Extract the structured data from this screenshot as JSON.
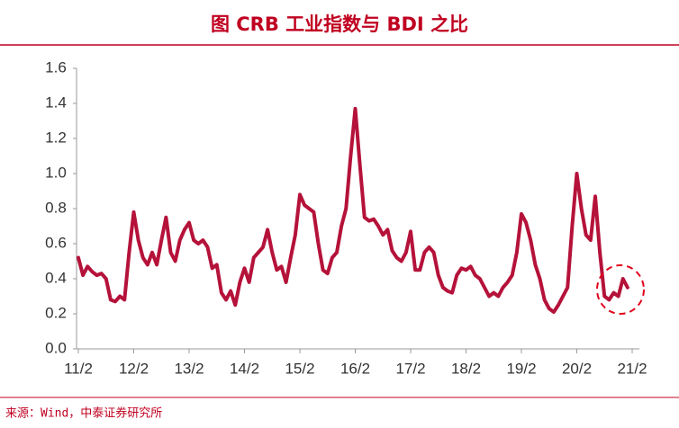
{
  "chart_data": {
    "type": "line",
    "title": "图  CRB 工业指数与 BDI 之比",
    "source": "来源：Wind，中泰证券研究所",
    "color": "#b5123a",
    "categories": [
      "11/2",
      null,
      null,
      null,
      null,
      null,
      null,
      null,
      null,
      null,
      null,
      null,
      "12/2",
      null,
      null,
      null,
      null,
      null,
      null,
      null,
      null,
      null,
      null,
      null,
      "13/2",
      null,
      null,
      null,
      null,
      null,
      null,
      null,
      null,
      null,
      null,
      null,
      "14/2",
      null,
      null,
      null,
      null,
      null,
      null,
      null,
      null,
      null,
      null,
      null,
      "15/2",
      null,
      null,
      null,
      null,
      null,
      null,
      null,
      null,
      null,
      null,
      null,
      "16/2",
      null,
      null,
      null,
      null,
      null,
      null,
      null,
      null,
      null,
      null,
      null,
      "17/2",
      null,
      null,
      null,
      null,
      null,
      null,
      null,
      null,
      null,
      null,
      null,
      "18/2",
      null,
      null,
      null,
      null,
      null,
      null,
      null,
      null,
      null,
      null,
      null,
      "19/2",
      null,
      null,
      null,
      null,
      null,
      null,
      null,
      null,
      null,
      null,
      null,
      "20/2",
      null,
      null,
      null,
      null,
      null,
      null,
      null,
      null,
      null,
      null,
      null,
      "21/2"
    ],
    "values": [
      0.52,
      0.42,
      0.47,
      0.44,
      0.42,
      0.43,
      0.4,
      0.28,
      0.27,
      0.3,
      0.28,
      0.55,
      0.78,
      0.62,
      0.52,
      0.48,
      0.55,
      0.48,
      0.62,
      0.75,
      0.55,
      0.5,
      0.62,
      0.68,
      0.72,
      0.62,
      0.6,
      0.62,
      0.58,
      0.46,
      0.48,
      0.32,
      0.28,
      0.33,
      0.25,
      0.38,
      0.46,
      0.38,
      0.52,
      0.55,
      0.58,
      0.68,
      0.55,
      0.45,
      0.47,
      0.38,
      0.52,
      0.65,
      0.88,
      0.82,
      0.8,
      0.78,
      0.6,
      0.45,
      0.43,
      0.52,
      0.55,
      0.7,
      0.8,
      1.1,
      1.37,
      1.05,
      0.75,
      0.73,
      0.74,
      0.7,
      0.65,
      0.68,
      0.56,
      0.52,
      0.5,
      0.55,
      0.67,
      0.45,
      0.45,
      0.55,
      0.58,
      0.55,
      0.42,
      0.35,
      0.33,
      0.32,
      0.42,
      0.46,
      0.45,
      0.47,
      0.42,
      0.4,
      0.35,
      0.3,
      0.32,
      0.3,
      0.35,
      0.38,
      0.42,
      0.55,
      0.77,
      0.72,
      0.62,
      0.48,
      0.4,
      0.28,
      0.23,
      0.21,
      0.25,
      0.3,
      0.35,
      0.7,
      1.0,
      0.8,
      0.65,
      0.62,
      0.87,
      0.55,
      0.3,
      0.28,
      0.32,
      0.3,
      0.4,
      0.35,
      null
    ],
    "ylim": [
      0,
      1.6
    ],
    "yticks": [
      {
        "value": 0,
        "label": "0.0"
      },
      {
        "value": 0.2,
        "label": "0.2"
      },
      {
        "value": 0.4,
        "label": "0.4"
      },
      {
        "value": 0.6,
        "label": "0.6"
      },
      {
        "value": 0.8,
        "label": "0.8"
      },
      {
        "value": 1,
        "label": "1.0"
      },
      {
        "value": 1.2,
        "label": "1.2"
      },
      {
        "value": 1.4,
        "label": "1.4"
      },
      {
        "value": 1.6,
        "label": "1.6"
      }
    ],
    "grid": false
  }
}
